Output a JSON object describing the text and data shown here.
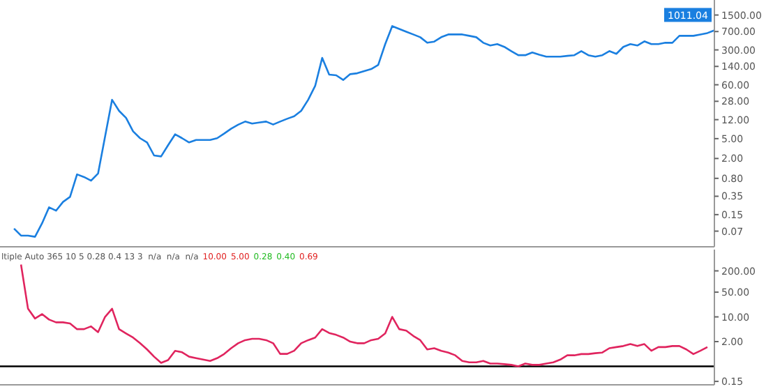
{
  "chart_data": [
    {
      "type": "line",
      "log": "y",
      "tick_labels": "y",
      "marker": "none",
      "line_style": "solid",
      "ylim": [
        0.034,
        3000
      ],
      "yticks": [
        {
          "value": 1500,
          "label": "1500.00"
        },
        {
          "value": 700,
          "label": "700.00"
        },
        {
          "value": 300,
          "label": "300.00"
        },
        {
          "value": 140,
          "label": "140.00"
        },
        {
          "value": 60,
          "label": "60.00"
        },
        {
          "value": 28,
          "label": "28.00"
        },
        {
          "value": 12,
          "label": "12.00"
        },
        {
          "value": 5,
          "label": "5.00"
        },
        {
          "value": 2,
          "label": "2.00"
        },
        {
          "value": 0.8,
          "label": "0.80"
        },
        {
          "value": 0.35,
          "label": "0.35"
        },
        {
          "value": 0.15,
          "label": "0.15"
        },
        {
          "value": 0.07,
          "label": "0.07"
        }
      ],
      "annotations": [
        "1011.04"
      ],
      "categories": [
        null,
        null,
        null,
        null,
        null,
        null,
        null,
        null,
        null,
        null,
        null,
        null,
        null,
        null,
        null,
        null,
        null,
        null,
        null,
        null,
        null,
        null,
        null,
        null,
        null,
        null,
        null,
        null,
        null,
        null,
        null,
        null,
        null,
        null,
        null,
        null,
        null,
        null,
        null,
        null,
        null,
        null,
        null,
        null,
        null,
        null,
        null,
        null,
        null,
        null,
        null,
        null,
        null,
        null,
        null,
        null,
        null,
        null,
        null,
        null,
        null,
        null,
        null,
        null,
        null,
        null,
        null,
        null,
        null,
        null,
        null,
        null,
        null,
        null,
        null,
        null,
        null,
        null,
        null,
        null,
        null,
        null,
        null,
        null,
        null,
        null,
        null,
        null,
        null,
        null,
        null,
        null,
        null,
        null,
        null,
        null,
        null,
        null,
        null,
        null,
        null,
        null,
        null
      ],
      "series": [
        {
          "color": "#1a7fe0",
          "values": [
            null,
            null,
            0.079,
            0.057,
            0.057,
            0.054,
            0.1,
            0.21,
            0.18,
            0.27,
            0.34,
            0.96,
            0.85,
            0.72,
            1.0,
            5.5,
            30,
            18,
            13,
            7.0,
            5.1,
            4.2,
            2.3,
            2.2,
            3.7,
            6.1,
            5.1,
            4.2,
            4.7,
            4.7,
            4.7,
            5.1,
            6.3,
            7.9,
            9.5,
            11,
            10,
            10.5,
            11,
            9.6,
            11,
            12.5,
            14,
            18,
            30,
            57,
            207,
            96,
            93,
            75,
            98,
            102,
            113,
            124,
            150,
            392,
            900,
            791,
            696,
            612,
            539,
            417,
            440,
            540,
            612,
            612,
            612,
            575,
            539,
            417,
            367,
            392,
            345,
            284,
            235,
            235,
            267,
            240,
            220,
            220,
            220,
            228,
            235,
            284,
            235,
            220,
            235,
            284,
            250,
            345,
            392,
            367,
            445,
            392,
            392,
            417,
            417,
            575,
            575,
            575,
            612,
            653,
            742
          ]
        }
      ]
    },
    {
      "type": "line",
      "log": "y",
      "tick_labels": "y",
      "marker": "none",
      "line_style": "solid",
      "ylim": [
        0.12,
        800
      ],
      "yticks": [
        {
          "value": 200,
          "label": "200.00"
        },
        {
          "value": 50,
          "label": "50.00"
        },
        {
          "value": 10,
          "label": "10.00"
        },
        {
          "value": 2,
          "label": "2.00"
        },
        {
          "value": 0.15,
          "label": "0.15"
        }
      ],
      "ref_lines": [
        {
          "axis": "y",
          "value": 0.4,
          "color": "#000000"
        }
      ],
      "annotations": [
        "ltiple Auto 365 10 5 0.28 0.4 13 3  n/a  n/a  n/a",
        "10.00",
        "5.00",
        "0.28",
        "0.40",
        "0.69"
      ],
      "categories": [
        null,
        null,
        null,
        null,
        null,
        null,
        null,
        null,
        null,
        null,
        null,
        null,
        null,
        null,
        null,
        null,
        null,
        null,
        null,
        null,
        null,
        null,
        null,
        null,
        null,
        null,
        null,
        null,
        null,
        null,
        null,
        null,
        null,
        null,
        null,
        null,
        null,
        null,
        null,
        null,
        null,
        null,
        null,
        null,
        null,
        null,
        null,
        null,
        null,
        null,
        null,
        null,
        null,
        null,
        null,
        null,
        null,
        null,
        null,
        null,
        null,
        null,
        null,
        null,
        null,
        null,
        null,
        null,
        null,
        null,
        null,
        null,
        null,
        null,
        null,
        null,
        null,
        null,
        null,
        null,
        null,
        null,
        null,
        null,
        null,
        null,
        null,
        null,
        null,
        null,
        null,
        null,
        null,
        null,
        null,
        null,
        null,
        null,
        null,
        null,
        null,
        null,
        null
      ],
      "series": [
        {
          "color": "#e0245e",
          "values": [
            null,
            null,
            null,
            302,
            17,
            9,
            12,
            8.4,
            7,
            7.0,
            6.5,
            4.5,
            4.5,
            5.4,
            3.7,
            10,
            17,
            4.5,
            3.4,
            2.6,
            1.8,
            1.2,
            0.75,
            0.5,
            0.6,
            1.1,
            1.0,
            0.75,
            0.68,
            0.62,
            0.57,
            0.68,
            0.89,
            1.3,
            1.8,
            2.2,
            2.4,
            2.4,
            2.2,
            1.8,
            0.9,
            0.9,
            1.1,
            1.8,
            2.2,
            2.6,
            4.5,
            3.5,
            3.1,
            2.6,
            2.0,
            1.8,
            1.8,
            2.2,
            2.4,
            3.4,
            10,
            4.5,
            4.1,
            2.9,
            2.2,
            1.2,
            1.3,
            1.1,
            0.98,
            0.82,
            0.57,
            0.52,
            0.52,
            0.57,
            0.48,
            0.48,
            0.46,
            0.44,
            0.4,
            0.48,
            0.44,
            0.44,
            0.48,
            0.52,
            0.62,
            0.82,
            0.82,
            0.89,
            0.89,
            0.94,
            0.98,
            1.3,
            1.4,
            1.5,
            1.7,
            1.5,
            1.7,
            1.1,
            1.4,
            1.4,
            1.5,
            1.5,
            1.2,
            0.89,
            1.1,
            1.4,
            null
          ]
        }
      ]
    }
  ]
}
